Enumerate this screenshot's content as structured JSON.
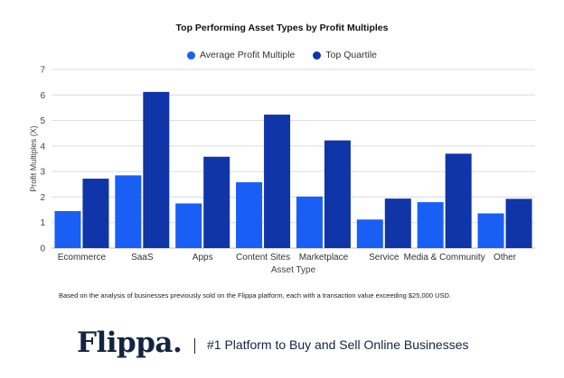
{
  "chart_data": {
    "type": "bar",
    "title": "Top Performing Asset Types by Profit Multiples",
    "xlabel": "Asset Type",
    "ylabel": "Profit Multiples (X)",
    "ylim": [
      0,
      7
    ],
    "yticks": [
      0,
      1,
      2,
      3,
      4,
      5,
      6,
      7
    ],
    "grid": true,
    "legend_position": "top-center",
    "categories": [
      "Ecommerce",
      "SaaS",
      "Apps",
      "Content Sites",
      "Marketplace",
      "Service",
      "Media & Community",
      "Other"
    ],
    "series": [
      {
        "name": "Average Profit Multiple",
        "color": "#1a5ff5",
        "values": [
          1.45,
          2.85,
          1.75,
          2.58,
          2.02,
          1.12,
          1.8,
          1.36
        ]
      },
      {
        "name": "Top Quartile",
        "color": "#0f35a8",
        "values": [
          2.72,
          6.12,
          3.58,
          5.23,
          4.22,
          1.94,
          3.7,
          1.93
        ]
      }
    ]
  },
  "footnote": "Based on the analysis of businesses previously sold on the Flippa platform, each with a transaction value exceeding $25,000 USD.",
  "brand": {
    "logo": "Flippa.",
    "separator": "|",
    "tagline": "#1 Platform to Buy and Sell Online Businesses"
  }
}
